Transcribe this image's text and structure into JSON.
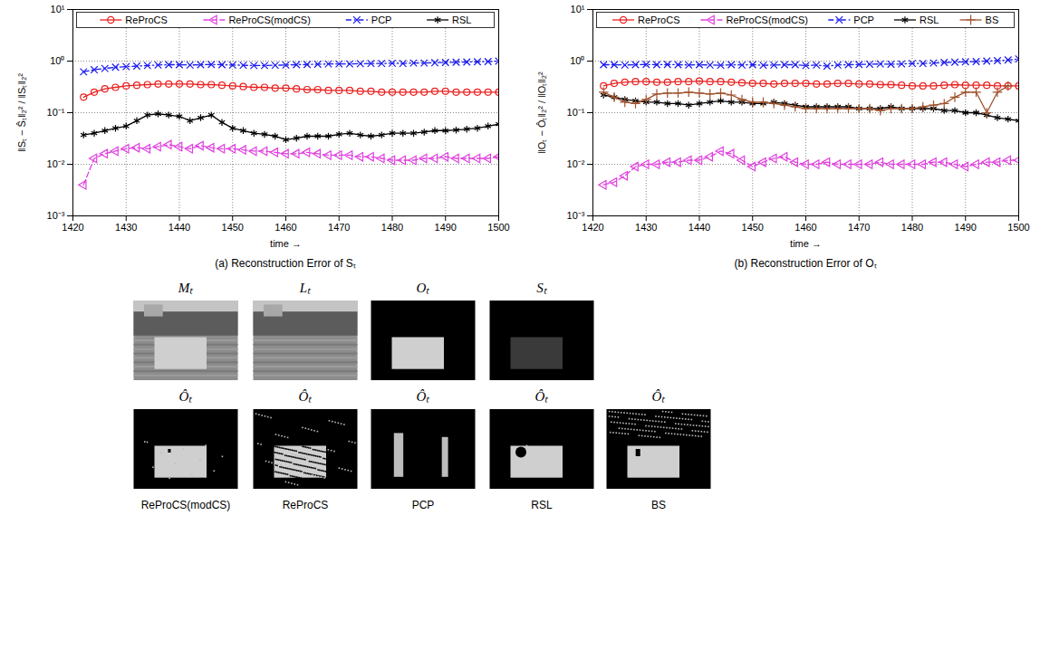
{
  "chart_data": [
    {
      "type": "line",
      "title": "(a) Reconstruction Error of Sₜ",
      "xlabel": "time →",
      "ylabel": "‖Sₜ − Ŝₜ‖₂² / ‖Sₜ‖₂²",
      "x": [
        1422,
        1424,
        1426,
        1428,
        1430,
        1432,
        1434,
        1436,
        1438,
        1440,
        1442,
        1444,
        1446,
        1448,
        1450,
        1452,
        1454,
        1456,
        1458,
        1460,
        1462,
        1464,
        1466,
        1468,
        1470,
        1472,
        1474,
        1476,
        1478,
        1480,
        1482,
        1484,
        1486,
        1488,
        1490,
        1492,
        1494,
        1496,
        1498,
        1500
      ],
      "series": [
        {
          "name": "ReProCS",
          "color": "#e8201f",
          "marker": "circle",
          "line_style": "solid",
          "values": [
            0.2,
            0.25,
            0.29,
            0.31,
            0.33,
            0.34,
            0.35,
            0.36,
            0.36,
            0.36,
            0.36,
            0.35,
            0.35,
            0.34,
            0.33,
            0.32,
            0.31,
            0.31,
            0.3,
            0.3,
            0.29,
            0.28,
            0.28,
            0.27,
            0.27,
            0.27,
            0.26,
            0.26,
            0.25,
            0.25,
            0.25,
            0.25,
            0.25,
            0.26,
            0.26,
            0.25,
            0.25,
            0.25,
            0.25,
            0.25
          ]
        },
        {
          "name": "ReProCS(modCS)",
          "color": "#e040e0",
          "marker": "triangle-left",
          "line_style": "dashed",
          "values": [
            0.004,
            0.013,
            0.016,
            0.018,
            0.02,
            0.021,
            0.02,
            0.022,
            0.024,
            0.022,
            0.02,
            0.023,
            0.021,
            0.02,
            0.02,
            0.019,
            0.018,
            0.018,
            0.017,
            0.016,
            0.016,
            0.017,
            0.016,
            0.015,
            0.015,
            0.015,
            0.014,
            0.014,
            0.013,
            0.012,
            0.012,
            0.012,
            0.013,
            0.013,
            0.014,
            0.013,
            0.013,
            0.013,
            0.013,
            0.014
          ]
        },
        {
          "name": "PCP",
          "color": "#1a1aee",
          "marker": "x",
          "line_style": "dashdot",
          "values": [
            0.62,
            0.68,
            0.72,
            0.76,
            0.78,
            0.8,
            0.82,
            0.84,
            0.85,
            0.85,
            0.84,
            0.85,
            0.86,
            0.85,
            0.84,
            0.83,
            0.82,
            0.82,
            0.83,
            0.84,
            0.85,
            0.86,
            0.87,
            0.88,
            0.88,
            0.88,
            0.89,
            0.9,
            0.9,
            0.91,
            0.9,
            0.92,
            0.92,
            0.93,
            0.94,
            0.95,
            0.96,
            0.97,
            0.98,
            1.0
          ]
        },
        {
          "name": "RSL",
          "color": "#000000",
          "marker": "asterisk",
          "line_style": "solid",
          "values": [
            0.037,
            0.04,
            0.045,
            0.05,
            0.055,
            0.07,
            0.09,
            0.095,
            0.09,
            0.085,
            0.07,
            0.08,
            0.09,
            0.065,
            0.05,
            0.045,
            0.04,
            0.038,
            0.035,
            0.03,
            0.032,
            0.035,
            0.035,
            0.035,
            0.038,
            0.04,
            0.037,
            0.035,
            0.037,
            0.04,
            0.04,
            0.04,
            0.042,
            0.045,
            0.045,
            0.046,
            0.048,
            0.05,
            0.055,
            0.06
          ]
        }
      ],
      "xlim": [
        1420,
        1500
      ],
      "xticks": [
        1420,
        1430,
        1440,
        1450,
        1460,
        1470,
        1480,
        1490,
        1500
      ],
      "ylim": [
        0.001,
        10
      ],
      "yticks": [
        {
          "value": 0.001,
          "label": "10⁻³"
        },
        {
          "value": 0.01,
          "label": "10⁻²"
        },
        {
          "value": 0.1,
          "label": "10⁻¹"
        },
        {
          "value": 1,
          "label": "10⁰"
        },
        {
          "value": 10,
          "label": "10¹"
        }
      ],
      "log": "y",
      "grid": true,
      "legend": "top"
    },
    {
      "type": "line",
      "title": "(b) Reconstruction Error of Oₜ",
      "xlabel": "time →",
      "ylabel": "‖Oₜ − Ôₜ‖₂² / ‖Oₜ‖₂²",
      "x": [
        1422,
        1424,
        1426,
        1428,
        1430,
        1432,
        1434,
        1436,
        1438,
        1440,
        1442,
        1444,
        1446,
        1448,
        1450,
        1452,
        1454,
        1456,
        1458,
        1460,
        1462,
        1464,
        1466,
        1468,
        1470,
        1472,
        1474,
        1476,
        1478,
        1480,
        1482,
        1484,
        1486,
        1488,
        1490,
        1492,
        1494,
        1496,
        1498,
        1500
      ],
      "series": [
        {
          "name": "ReProCS",
          "color": "#e8201f",
          "marker": "circle",
          "line_style": "solid",
          "values": [
            0.33,
            0.37,
            0.39,
            0.4,
            0.4,
            0.39,
            0.39,
            0.4,
            0.4,
            0.41,
            0.4,
            0.4,
            0.39,
            0.38,
            0.37,
            0.37,
            0.36,
            0.37,
            0.37,
            0.37,
            0.36,
            0.36,
            0.37,
            0.37,
            0.36,
            0.36,
            0.35,
            0.35,
            0.34,
            0.33,
            0.33,
            0.33,
            0.34,
            0.35,
            0.34,
            0.34,
            0.34,
            0.33,
            0.33,
            0.33
          ]
        },
        {
          "name": "ReProCS(modCS)",
          "color": "#e040e0",
          "marker": "triangle-left",
          "line_style": "dashed",
          "values": [
            0.004,
            0.0045,
            0.006,
            0.009,
            0.01,
            0.01,
            0.011,
            0.011,
            0.012,
            0.012,
            0.014,
            0.018,
            0.016,
            0.012,
            0.009,
            0.011,
            0.013,
            0.014,
            0.011,
            0.01,
            0.01,
            0.011,
            0.01,
            0.01,
            0.01,
            0.01,
            0.011,
            0.01,
            0.01,
            0.01,
            0.01,
            0.011,
            0.011,
            0.01,
            0.009,
            0.01,
            0.011,
            0.011,
            0.012,
            0.012
          ]
        },
        {
          "name": "PCP",
          "color": "#1a1aee",
          "marker": "x",
          "line_style": "dashdot",
          "values": [
            0.85,
            0.85,
            0.84,
            0.85,
            0.86,
            0.85,
            0.86,
            0.85,
            0.84,
            0.85,
            0.84,
            0.83,
            0.85,
            0.84,
            0.85,
            0.83,
            0.84,
            0.85,
            0.85,
            0.82,
            0.84,
            0.8,
            0.84,
            0.85,
            0.86,
            0.87,
            0.88,
            0.87,
            0.88,
            0.9,
            0.9,
            0.92,
            0.94,
            0.95,
            0.97,
            0.98,
            1.0,
            1.02,
            1.05,
            1.1
          ]
        },
        {
          "name": "RSL",
          "color": "#000000",
          "marker": "asterisk",
          "line_style": "solid",
          "values": [
            0.22,
            0.2,
            0.18,
            0.17,
            0.16,
            0.16,
            0.15,
            0.15,
            0.14,
            0.15,
            0.16,
            0.17,
            0.16,
            0.16,
            0.15,
            0.15,
            0.16,
            0.15,
            0.14,
            0.13,
            0.13,
            0.13,
            0.13,
            0.13,
            0.12,
            0.12,
            0.12,
            0.13,
            0.12,
            0.12,
            0.12,
            0.12,
            0.11,
            0.11,
            0.1,
            0.1,
            0.09,
            0.08,
            0.075,
            0.07
          ]
        },
        {
          "name": "BS",
          "color": "#a0522d",
          "marker": "plus",
          "line_style": "solid",
          "values": [
            0.25,
            0.2,
            0.16,
            0.15,
            0.18,
            0.23,
            0.24,
            0.24,
            0.25,
            0.24,
            0.23,
            0.24,
            0.22,
            0.18,
            0.16,
            0.16,
            0.15,
            0.14,
            0.13,
            0.12,
            0.12,
            0.12,
            0.12,
            0.12,
            0.12,
            0.12,
            0.11,
            0.12,
            0.12,
            0.12,
            0.13,
            0.14,
            0.15,
            0.2,
            0.25,
            0.25,
            0.1,
            0.25,
            0.33,
            null
          ]
        }
      ],
      "xlim": [
        1420,
        1500
      ],
      "xticks": [
        1420,
        1430,
        1440,
        1450,
        1460,
        1470,
        1480,
        1490,
        1500
      ],
      "ylim": [
        0.001,
        10
      ],
      "yticks": [
        {
          "value": 0.001,
          "label": "10⁻³"
        },
        {
          "value": 0.01,
          "label": "10⁻²"
        },
        {
          "value": 0.1,
          "label": "10⁻¹"
        },
        {
          "value": 1,
          "label": "10⁰"
        },
        {
          "value": 10,
          "label": "10¹"
        }
      ],
      "log": "y",
      "grid": true,
      "legend": "top"
    }
  ],
  "images": {
    "top": [
      "Mₜ",
      "Lₜ",
      "Oₜ",
      "Sₜ"
    ],
    "bottom": [
      {
        "label": "Ôₜ",
        "caption": "ReProCS(modCS)"
      },
      {
        "label": "Ôₜ",
        "caption": "ReProCS"
      },
      {
        "label": "Ôₜ",
        "caption": "PCP"
      },
      {
        "label": "Ôₜ",
        "caption": "RSL"
      },
      {
        "label": "Ôₜ",
        "caption": "BS"
      }
    ]
  }
}
